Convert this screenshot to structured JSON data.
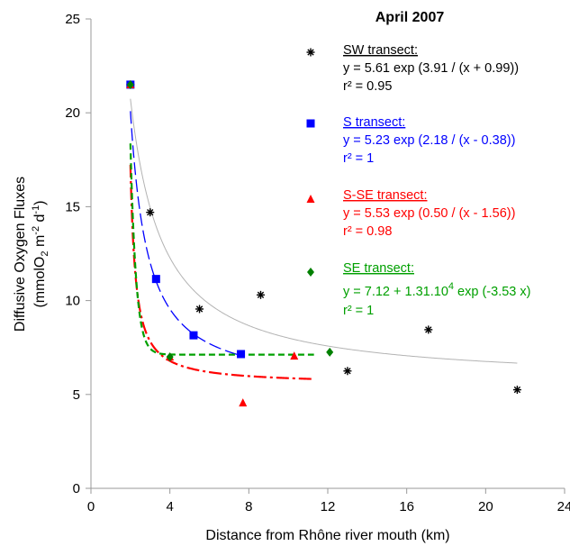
{
  "chart_data": {
    "type": "scatter",
    "title": "April 2007",
    "xlabel": "Distance from Rhône river mouth (km)",
    "ylabel_line1": "Diffusive Oxygen Fluxes",
    "ylabel_line2_parts": [
      "(mmolO",
      "2",
      " m",
      "-2",
      " d",
      "-1",
      ")"
    ],
    "xlim": [
      0,
      24
    ],
    "ylim": [
      0,
      25
    ],
    "xticks": [
      0,
      4,
      8,
      12,
      16,
      20,
      24
    ],
    "yticks": [
      0,
      5,
      10,
      15,
      20,
      25
    ],
    "grid": false,
    "legend_position": "right",
    "series": [
      {
        "name": "SW transect:",
        "marker": "asterisk",
        "color": "#000000",
        "curve_color": "#b3b3b3",
        "curve_dash": "",
        "equation": "y = 5.61 exp (3.91 / (x + 0.99))",
        "r2": "r² = 0.95",
        "points": [
          [
            2.0,
            21.5
          ],
          [
            3.0,
            14.7
          ],
          [
            5.5,
            9.55
          ],
          [
            8.6,
            10.3
          ],
          [
            13.0,
            6.25
          ],
          [
            17.1,
            8.45
          ],
          [
            21.6,
            5.25
          ]
        ],
        "fit": {
          "a": 5.61,
          "b": 3.91,
          "c": -0.99,
          "x0": 2.0,
          "x1": 21.6
        }
      },
      {
        "name": "S transect:",
        "marker": "square",
        "color": "#0000ff",
        "curve_color": "#0000ff",
        "curve_dash": "14,5",
        "equation": "y = 5.23 exp (2.18 / (x - 0.38))",
        "r2": "r² = 1",
        "points": [
          [
            2.0,
            21.5
          ],
          [
            3.3,
            11.15
          ],
          [
            5.2,
            8.15
          ],
          [
            7.6,
            7.15
          ]
        ],
        "fit": {
          "a": 5.23,
          "b": 2.18,
          "c": 0.38,
          "x0": 2.0,
          "x1": 7.6
        }
      },
      {
        "name": "S-SE transect:",
        "marker": "triangle",
        "color": "#ff0000",
        "curve_color": "#ff0000",
        "curve_dash": "14,4,3,4",
        "equation": "y = 5.53 exp (0.50 / (x - 1.56))",
        "r2": "r² = 0.98",
        "points": [
          [
            2.0,
            21.5
          ],
          [
            4.0,
            7.0
          ],
          [
            7.7,
            4.55
          ],
          [
            10.3,
            7.05
          ]
        ],
        "fit": {
          "a": 5.53,
          "b": 0.5,
          "c": 1.56,
          "x0": 2.0,
          "x1": 11.3
        }
      },
      {
        "name": "SE transect:",
        "marker": "diamond",
        "color": "#008000",
        "curve_color": "#00a000",
        "curve_dash": "7,4",
        "equation_main": "y = 7.12 + 1.31.10",
        "equation_sup": "4",
        "equation_tail": " exp (-3.53 x)",
        "r2": "r² = 1",
        "points": [
          [
            2.0,
            21.5
          ],
          [
            4.0,
            7.0
          ],
          [
            12.1,
            7.25
          ]
        ],
        "fit": {
          "a": 7.12,
          "b": 13100,
          "k": -3.53,
          "x0": 2.0,
          "x1": 11.3
        }
      }
    ]
  }
}
